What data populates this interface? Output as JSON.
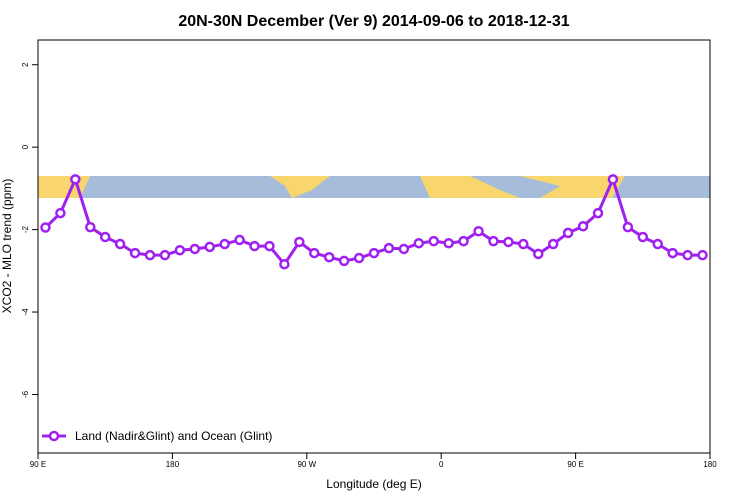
{
  "chart_data": {
    "type": "line",
    "title": "20N-30N December (Ver 9)   2014-09-06 to 2018-12-31",
    "x_label": "Longitude (deg E)",
    "y_label": "XCO2 - MLO trend (ppm)",
    "x": [
      95,
      105,
      115,
      125,
      135,
      145,
      155,
      165,
      175,
      185,
      195,
      205,
      215,
      225,
      235,
      245,
      255,
      265,
      275,
      285,
      295,
      305,
      315,
      325,
      335,
      345,
      355,
      365,
      375,
      385,
      395,
      405,
      415,
      425,
      435,
      445,
      455,
      465,
      475,
      485,
      495,
      505,
      515,
      525,
      535
    ],
    "series": [
      {
        "name": "Land (Nadir&Glint) and Ocean (Glint)",
        "color": "#a020f0",
        "values": [
          -1.95,
          -1.6,
          -0.78,
          -1.94,
          -2.18,
          -2.35,
          -2.57,
          -2.62,
          -2.62,
          -2.5,
          -2.47,
          -2.42,
          -2.35,
          -2.25,
          -2.4,
          -2.4,
          -2.84,
          -2.3,
          -2.57,
          -2.67,
          -2.76,
          -2.69,
          -2.57,
          -2.45,
          -2.47,
          -2.33,
          -2.28,
          -2.33,
          -2.28,
          -2.04,
          -2.28,
          -2.3,
          -2.35,
          -2.59,
          -2.35,
          -2.08,
          -1.92,
          -1.6,
          -0.78,
          -1.94,
          -2.18,
          -2.35,
          -2.57,
          -2.62,
          -2.62
        ]
      }
    ],
    "xlim": [
      90,
      540
    ],
    "xticks": [
      {
        "value": 90,
        "label": "90 E"
      },
      {
        "value": 180,
        "label": "180"
      },
      {
        "value": 270,
        "label": "90 W"
      },
      {
        "value": 360,
        "label": "0"
      },
      {
        "value": 450,
        "label": "90 E"
      },
      {
        "value": 540,
        "label": "180"
      }
    ],
    "ylim": [
      -7.42,
      2.6
    ],
    "yticks": [
      2,
      0,
      -2,
      -4,
      -6
    ],
    "legend": "bottom-left"
  }
}
